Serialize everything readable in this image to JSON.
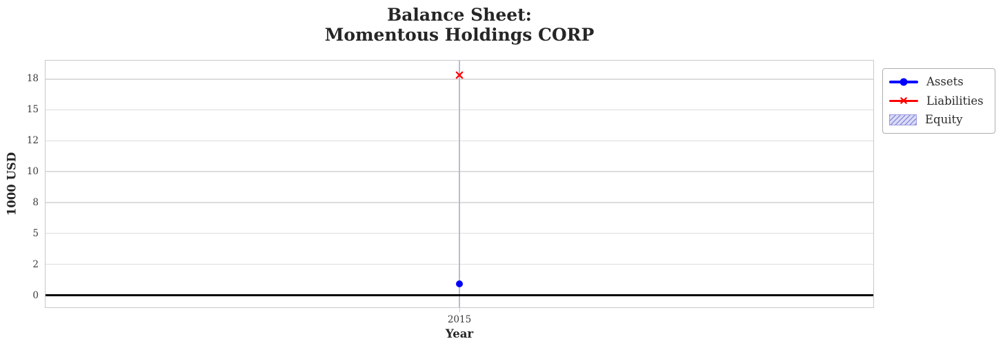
{
  "figure": {
    "title_line1": "Balance Sheet:",
    "title_line2": "Momentous Holdings CORP"
  },
  "chart_data": {
    "type": "line",
    "title": "Balance Sheet:\nMomentous Holdings CORP",
    "xlabel": "Year",
    "ylabel": "1000 USD",
    "x": [
      2015
    ],
    "x_tick_labels": [
      "2015"
    ],
    "y_ticks": [
      18,
      15,
      12,
      10,
      8,
      5,
      2,
      0
    ],
    "ylim_estimate": [
      -0.8,
      19.8
    ],
    "grid": true,
    "zero_axhline": true,
    "series": [
      {
        "name": "Assets",
        "values": [
          0.7
        ],
        "color": "#0000ff",
        "marker": "circle",
        "style": "line-with-marker"
      },
      {
        "name": "Liabilities",
        "values": [
          18.4
        ],
        "color": "#ff0000",
        "marker": "x",
        "style": "line-with-marker"
      },
      {
        "name": "Equity",
        "values": [],
        "color": "#8d8ddd",
        "style": "hatched-area",
        "visible_in_plot": false
      }
    ],
    "legend": {
      "position": "outside-upper-right",
      "entries": [
        "Assets",
        "Liabilities",
        "Equity"
      ]
    }
  },
  "colors": {
    "title_text": "#262626",
    "tick_text": "#3a3a3a",
    "grid_horizontal": "#dcdcdc",
    "grid_vertical": "#b9b9d8",
    "plot_border": "#c9c9c9",
    "zero_line": "#000000",
    "assets_blue": "#0000ff",
    "liabilities_red": "#ff0000",
    "equity_hatch": "#8d8ddd",
    "equity_fill": "#dcdcf7",
    "legend_border": "#aeaeae"
  }
}
